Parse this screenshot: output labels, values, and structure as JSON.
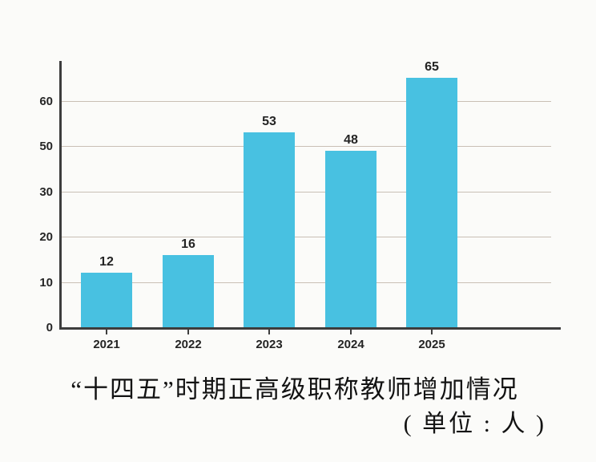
{
  "chart_data": {
    "type": "bar",
    "categories": [
      "2021",
      "2022",
      "2023",
      "2024",
      "2025"
    ],
    "values": [
      12,
      16,
      53,
      48,
      65
    ],
    "ytick_labels": [
      "0",
      "10",
      "20",
      "30",
      "50",
      "60"
    ],
    "title": "“十四五”时期正高级职称教师增加情况",
    "unit_label": "( 单位 : 人 )",
    "bar_color": "#48c1e1",
    "grid_color": "#c9bfb5",
    "axis_color": "#3d3d3d",
    "legend": "none",
    "grid": "horizontal",
    "ylim_note": "axis printed ticks 0,10,20,30,50,60 evenly spaced (40 misprinted as 30)"
  }
}
